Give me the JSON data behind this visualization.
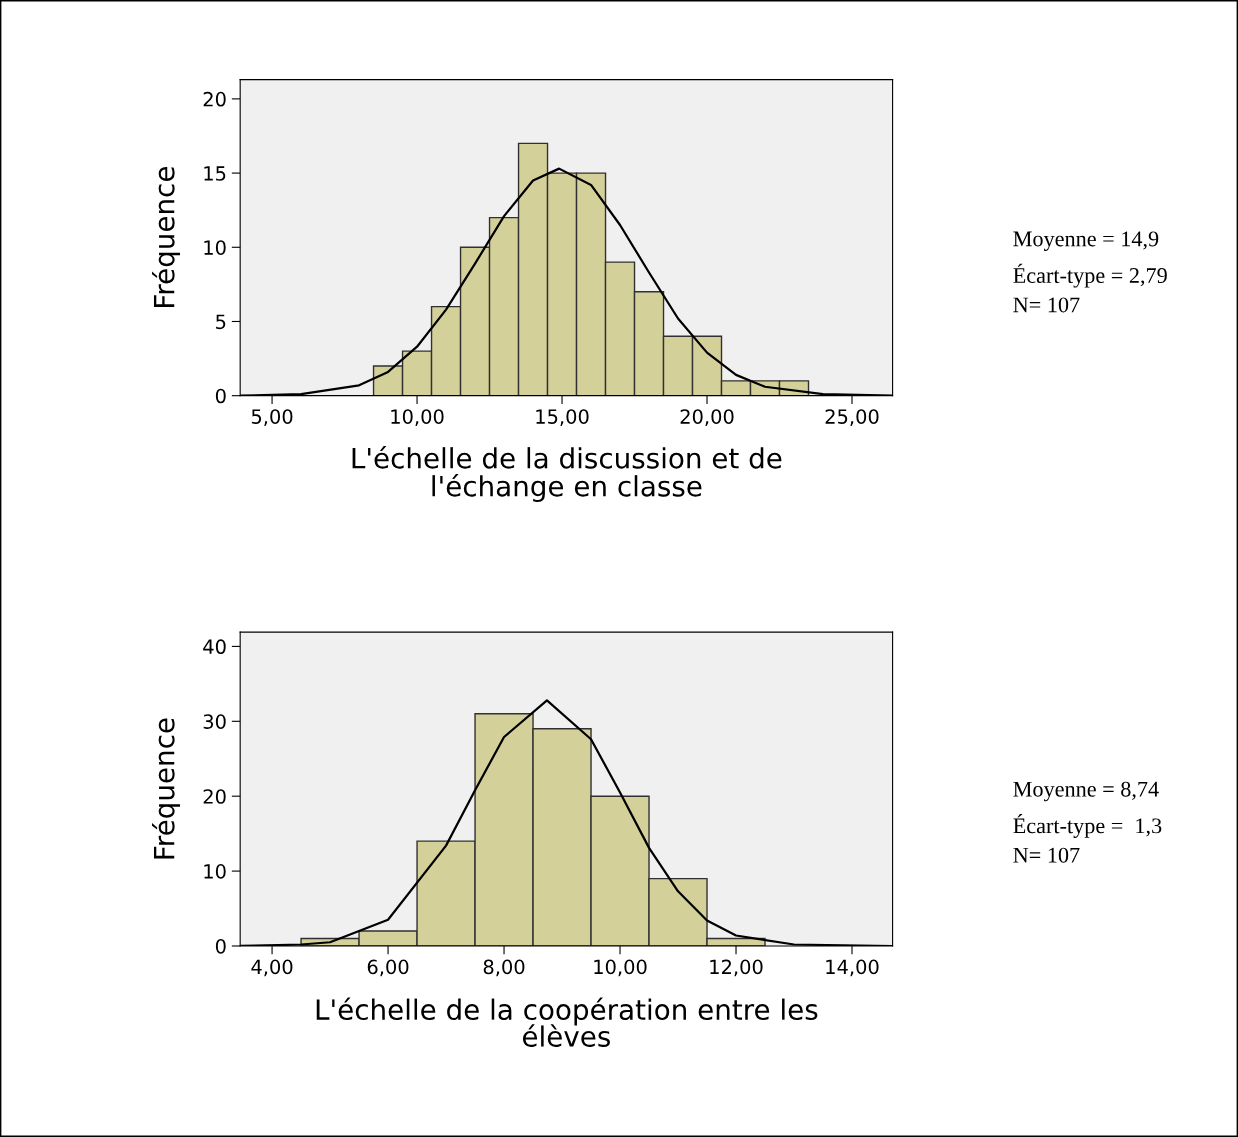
{
  "chart_data": [
    {
      "type": "histogram",
      "xlabel": "L'échelle de la discussion et de\nl'échange en classe",
      "ylabel": "Fréquence",
      "bins": [
        8.5,
        9.5,
        10.5,
        11.5,
        12.5,
        13.5,
        14.5,
        15.5,
        16.5,
        17.5,
        18.5,
        19.5,
        20.5,
        21.5,
        22.5,
        23.5
      ],
      "values": [
        2,
        3,
        6,
        10,
        12,
        17,
        15,
        15,
        9,
        7,
        4,
        4,
        1,
        1,
        1
      ],
      "color": "#d4d09a",
      "series": [
        {
          "type": "line",
          "color": "#000000",
          "x": [
            3.9,
            6,
            8,
            9,
            10,
            11,
            12,
            13,
            14,
            14.9,
            16,
            17,
            18,
            19,
            20,
            21,
            22,
            24,
            26.4
          ],
          "values": [
            0,
            0.1,
            0.7,
            1.6,
            3.3,
            5.8,
            8.9,
            12.1,
            14.5,
            15.3,
            14.2,
            11.5,
            8.3,
            5.2,
            2.9,
            1.4,
            0.6,
            0.1,
            0
          ]
        }
      ],
      "xlim": [
        3.9,
        26.4
      ],
      "ylim": [
        0,
        21.3
      ],
      "xticks": [
        {
          "value": 5,
          "label": "5,00"
        },
        {
          "value": 10,
          "label": "10,00"
        },
        {
          "value": 15,
          "label": "15,00"
        },
        {
          "value": 20,
          "label": "20,00"
        },
        {
          "value": 25,
          "label": "25,00"
        }
      ],
      "yticks": [
        0,
        5,
        10,
        15,
        20
      ],
      "grid": false,
      "annotations": [
        "Moyenne = 14,9",
        "Écart-type = 2,79",
        "N= 107"
      ]
    },
    {
      "type": "histogram",
      "xlabel": "L'échelle de la coopération entre les\nélèves",
      "ylabel": "Fréquence",
      "bins": [
        4.5,
        5.5,
        6.5,
        7.5,
        8.5,
        9.5,
        10.5,
        11.5,
        12.5
      ],
      "values": [
        1,
        2,
        14,
        31,
        29,
        20,
        9,
        1
      ],
      "color": "#d4d09a",
      "series": [
        {
          "type": "line",
          "color": "#000000",
          "x": [
            3.45,
            4.5,
            5,
            6,
            7,
            7.5,
            8,
            8.74,
            9.5,
            10,
            10.5,
            11,
            11.5,
            12,
            13,
            14.7
          ],
          "values": [
            0,
            0.2,
            0.5,
            3.5,
            13.4,
            20.8,
            27.9,
            32.8,
            27.6,
            20.5,
            13.1,
            7.3,
            3.4,
            1.4,
            0.2,
            0
          ]
        }
      ],
      "xlim": [
        3.45,
        14.7
      ],
      "ylim": [
        0,
        41.9
      ],
      "xticks": [
        {
          "value": 4,
          "label": "4,00"
        },
        {
          "value": 6,
          "label": "6,00"
        },
        {
          "value": 8,
          "label": "8,00"
        },
        {
          "value": 10,
          "label": "10,00"
        },
        {
          "value": 12,
          "label": "12,00"
        },
        {
          "value": 14,
          "label": "14,00"
        }
      ],
      "yticks": [
        0,
        10,
        20,
        30,
        40
      ],
      "grid": false,
      "annotations": [
        "Moyenne = 8,74",
        "Écart-type =  1,3",
        "N= 107"
      ]
    }
  ]
}
